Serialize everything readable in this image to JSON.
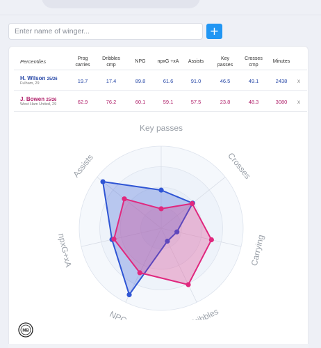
{
  "search": {
    "placeholder": "Enter name of winger..."
  },
  "add_button": {
    "label": "+"
  },
  "table": {
    "headers": [
      "Percentiles",
      "Prog carries",
      "Dribbles cmp",
      "NPG",
      "npxG +xA",
      "Assists",
      "Key passes",
      "Crosses cmp",
      "Minutes"
    ],
    "rows": [
      {
        "name": "H. Wilson",
        "season": "25/26",
        "club": "Fulham, 29",
        "values": [
          "19.7",
          "17.4",
          "89.8",
          "61.6",
          "91.0",
          "46.5",
          "49.1",
          "2438"
        ],
        "remove": "x"
      },
      {
        "name": "J. Bowen",
        "season": "25/26",
        "club": "West Ham United, 29",
        "values": [
          "62.9",
          "76.2",
          "60.1",
          "59.1",
          "57.5",
          "23.8",
          "48.3",
          "3080"
        ],
        "remove": "x"
      }
    ]
  },
  "chart_data": {
    "type": "radar",
    "axes": [
      "Key passes",
      "Crosses",
      "Carrying",
      "Dribbles",
      "NPG",
      "npxG+xA",
      "Assists"
    ],
    "range": [
      0,
      100
    ],
    "series": [
      {
        "name": "H. Wilson",
        "color": "#2f55d4",
        "values": [
          46.5,
          49.1,
          19.7,
          17.4,
          89.8,
          61.6,
          91.0
        ]
      },
      {
        "name": "J. Bowen",
        "color": "#e0287e",
        "values": [
          23.8,
          48.3,
          62.9,
          76.2,
          60.1,
          59.1,
          57.5
        ]
      }
    ]
  },
  "colors": {
    "accent": "#2196f3",
    "wilson": "#2a4aa8",
    "bowen": "#b0206a"
  },
  "logo": {
    "text": "MB"
  }
}
